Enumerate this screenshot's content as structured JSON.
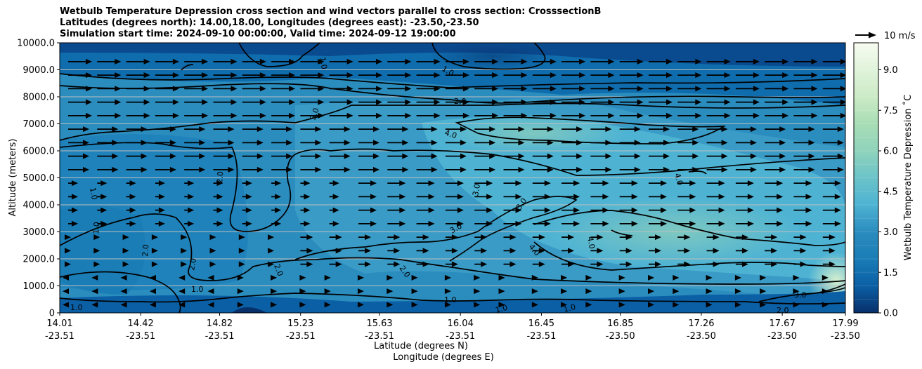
{
  "chart_data": {
    "type": "heatmap",
    "title_lines": [
      "Wetbulb Temperature Depression cross section and wind vectors parallel to cross section: CrosssectionB",
      "Latitudes (degrees north): 14.00,18.00, Longitudes (degrees east): -23.50,-23.50",
      "Simulation start time: 2024-09-10 00:00:00, Valid time: 2024-09-12 19:00:00"
    ],
    "ylabel": "Altitude (meters)",
    "xlabel_line1": "Latitude (degrees N)",
    "xlabel_line2": "Longitude (degrees E)",
    "colorbar_label": "Wetbulb Temperature Depression ˚C",
    "quiver_key_label": "10 m/s",
    "ylim": [
      0,
      10000
    ],
    "yticks": [
      "0",
      "1000.0",
      "2000.0",
      "3000.0",
      "4000.0",
      "5000.0",
      "6000.0",
      "7000.0",
      "8000.0",
      "9000.0",
      "10000.0"
    ],
    "xticks": [
      {
        "lat": "14.01",
        "lon": "-23.51"
      },
      {
        "lat": "14.42",
        "lon": "-23.51"
      },
      {
        "lat": "14.82",
        "lon": "-23.51"
      },
      {
        "lat": "15.23",
        "lon": "-23.51"
      },
      {
        "lat": "15.63",
        "lon": "-23.51"
      },
      {
        "lat": "16.04",
        "lon": "-23.51"
      },
      {
        "lat": "16.45",
        "lon": "-23.51"
      },
      {
        "lat": "16.85",
        "lon": "-23.50"
      },
      {
        "lat": "17.26",
        "lon": "-23.50"
      },
      {
        "lat": "17.67",
        "lon": "-23.50"
      },
      {
        "lat": "17.99",
        "lon": "-23.50"
      }
    ],
    "colorbar_range": [
      0,
      10
    ],
    "colorbar_ticks": [
      "0.0",
      "1.5",
      "3.0",
      "4.5",
      "6.0",
      "7.5",
      "9.0"
    ],
    "contour_labels": [
      "1.0",
      "2.0",
      "3.0",
      "4.0"
    ],
    "contour_levels": [
      1,
      2,
      3,
      4
    ],
    "grid": "horizontal",
    "colors": {
      "colormap": [
        "#08306b",
        "#0a4a8f",
        "#0b5fa5",
        "#0f6cad",
        "#1a7db6",
        "#2b8cbe",
        "#3a9bc6",
        "#4eb3d3",
        "#5fbfc8",
        "#7bccc4",
        "#a8ddb5",
        "#ccebc5",
        "#e0f3db",
        "#f7fcf0"
      ],
      "contour": "#000000",
      "arrow": "#000000",
      "grid": "#bfbfbf"
    }
  }
}
